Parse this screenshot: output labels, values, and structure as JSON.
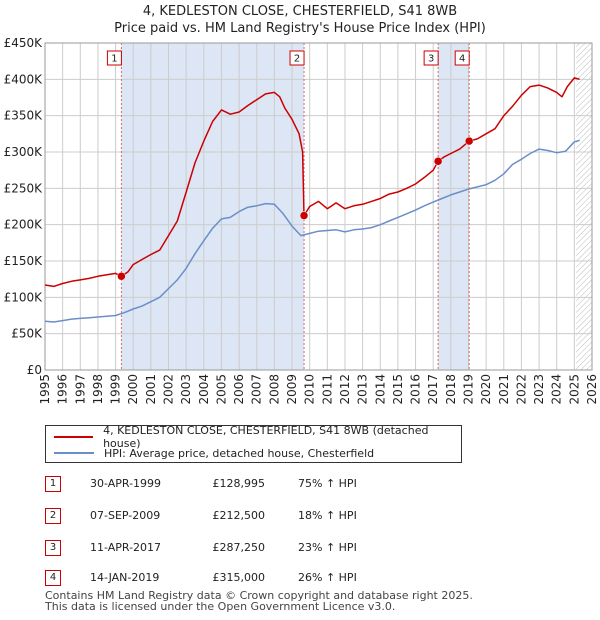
{
  "title_line1": "4, KEDLESTON CLOSE, CHESTERFIELD, S41 8WB",
  "title_line2": "Price paid vs. HM Land Registry's House Price Index (HPI)",
  "colors": {
    "property": "#cc0000",
    "hpi": "#6a8fc8",
    "shade": "#dde6f5",
    "marker_border": "#cc0000"
  },
  "legend": {
    "property": "4, KEDLESTON CLOSE, CHESTERFIELD, S41 8WB (detached house)",
    "hpi": "HPI: Average price, detached house, Chesterfield"
  },
  "sales": [
    {
      "num": "1",
      "date": "30-APR-1999",
      "price": "£128,995",
      "hpi": "75% ↑ HPI"
    },
    {
      "num": "2",
      "date": "07-SEP-2009",
      "price": "£212,500",
      "hpi": "18% ↑ HPI"
    },
    {
      "num": "3",
      "date": "11-APR-2017",
      "price": "£287,250",
      "hpi": "23% ↑ HPI"
    },
    {
      "num": "4",
      "date": "14-JAN-2019",
      "price": "£315,000",
      "hpi": "26% ↑ HPI"
    }
  ],
  "footer_line1": "Contains HM Land Registry data © Crown copyright and database right 2025.",
  "footer_line2": "This data is licensed under the Open Government Licence v3.0.",
  "chart_data": {
    "type": "line",
    "title": "4, KEDLESTON CLOSE, CHESTERFIELD, S41 8WB — Price paid vs. HM Land Registry's House Price Index (HPI)",
    "xlabel": "",
    "ylabel": "",
    "xlim": [
      1995,
      2026
    ],
    "ylim": [
      0,
      450000
    ],
    "y_ticks": [
      0,
      50000,
      100000,
      150000,
      200000,
      250000,
      300000,
      350000,
      400000,
      450000
    ],
    "y_tick_labels": [
      "£0",
      "£50K",
      "£100K",
      "£150K",
      "£200K",
      "£250K",
      "£300K",
      "£350K",
      "£400K",
      "£450K"
    ],
    "x_ticks": [
      1995,
      1996,
      1997,
      1998,
      1999,
      2000,
      2001,
      2002,
      2003,
      2004,
      2005,
      2006,
      2007,
      2008,
      2009,
      2010,
      2011,
      2012,
      2013,
      2014,
      2015,
      2016,
      2017,
      2018,
      2019,
      2020,
      2021,
      2022,
      2023,
      2024,
      2025,
      2026
    ],
    "grid": true,
    "shaded_periods": [
      [
        1999.33,
        2009.68
      ],
      [
        2017.28,
        2019.04
      ]
    ],
    "hatched_region": [
      2025.1,
      2026
    ],
    "sale_markers": [
      {
        "label": "1",
        "x": 1999.33,
        "y": 128995
      },
      {
        "label": "2",
        "x": 2009.68,
        "y": 212500
      },
      {
        "label": "3",
        "x": 2017.28,
        "y": 287250
      },
      {
        "label": "4",
        "x": 2019.04,
        "y": 315000
      }
    ],
    "series": [
      {
        "name": "4, KEDLESTON CLOSE, CHESTERFIELD, S41 8WB (detached house)",
        "x": [
          1995.0,
          1995.5,
          1996.0,
          1996.5,
          1997.0,
          1997.5,
          1998.0,
          1998.5,
          1999.0,
          1999.33,
          1999.7,
          2000.0,
          2000.5,
          2001.0,
          2001.5,
          2002.0,
          2002.5,
          2003.0,
          2003.5,
          2004.0,
          2004.5,
          2005.0,
          2005.5,
          2006.0,
          2006.5,
          2007.0,
          2007.5,
          2008.0,
          2008.3,
          2008.6,
          2009.0,
          2009.4,
          2009.6,
          2009.68,
          2010.0,
          2010.5,
          2011.0,
          2011.5,
          2012.0,
          2012.5,
          2013.0,
          2013.5,
          2014.0,
          2014.5,
          2015.0,
          2015.5,
          2016.0,
          2016.5,
          2017.0,
          2017.28,
          2017.6,
          2018.0,
          2018.5,
          2019.04,
          2019.5,
          2020.0,
          2020.5,
          2021.0,
          2021.5,
          2022.0,
          2022.5,
          2023.0,
          2023.5,
          2024.0,
          2024.3,
          2024.6,
          2025.0,
          2025.3
        ],
        "values": [
          117000,
          115000,
          119000,
          122000,
          124000,
          126000,
          129000,
          131000,
          133000,
          128995,
          135000,
          145000,
          152000,
          159000,
          165000,
          185000,
          205000,
          245000,
          285000,
          315000,
          342000,
          358000,
          352000,
          355000,
          364000,
          372000,
          380000,
          382000,
          376000,
          360000,
          345000,
          325000,
          300000,
          212500,
          225000,
          232000,
          222000,
          230000,
          222000,
          226000,
          228000,
          232000,
          236000,
          242000,
          245000,
          250000,
          256000,
          265000,
          275000,
          287250,
          293000,
          298000,
          304000,
          315000,
          318000,
          325000,
          332000,
          350000,
          363000,
          378000,
          390000,
          392000,
          388000,
          382000,
          376000,
          390000,
          402000,
          400000
        ]
      },
      {
        "name": "HPI: Average price, detached house, Chesterfield",
        "x": [
          1995.0,
          1995.5,
          1996.0,
          1996.5,
          1997.0,
          1997.5,
          1998.0,
          1998.5,
          1999.0,
          1999.5,
          2000.0,
          2000.5,
          2001.0,
          2001.5,
          2002.0,
          2002.5,
          2003.0,
          2003.5,
          2004.0,
          2004.5,
          2005.0,
          2005.5,
          2006.0,
          2006.5,
          2007.0,
          2007.5,
          2008.0,
          2008.5,
          2009.0,
          2009.5,
          2010.0,
          2010.5,
          2011.0,
          2011.5,
          2012.0,
          2012.5,
          2013.0,
          2013.5,
          2014.0,
          2014.5,
          2015.0,
          2015.5,
          2016.0,
          2016.5,
          2017.0,
          2017.5,
          2018.0,
          2018.5,
          2019.0,
          2019.5,
          2020.0,
          2020.5,
          2021.0,
          2021.5,
          2022.0,
          2022.5,
          2023.0,
          2023.5,
          2024.0,
          2024.5,
          2025.0,
          2025.3
        ],
        "values": [
          67000,
          66000,
          68000,
          70000,
          71000,
          72000,
          73000,
          74000,
          75000,
          79000,
          84000,
          88000,
          94000,
          100000,
          112000,
          124000,
          140000,
          160000,
          178000,
          195000,
          208000,
          210000,
          218000,
          224000,
          226000,
          229000,
          228000,
          215000,
          198000,
          185000,
          188000,
          191000,
          192000,
          193000,
          190000,
          193000,
          194000,
          196000,
          200000,
          205000,
          210000,
          215000,
          220000,
          226000,
          231000,
          236000,
          241000,
          245000,
          249000,
          252000,
          255000,
          261000,
          270000,
          283000,
          290000,
          298000,
          304000,
          302000,
          299000,
          301000,
          314000,
          316000
        ]
      }
    ]
  }
}
